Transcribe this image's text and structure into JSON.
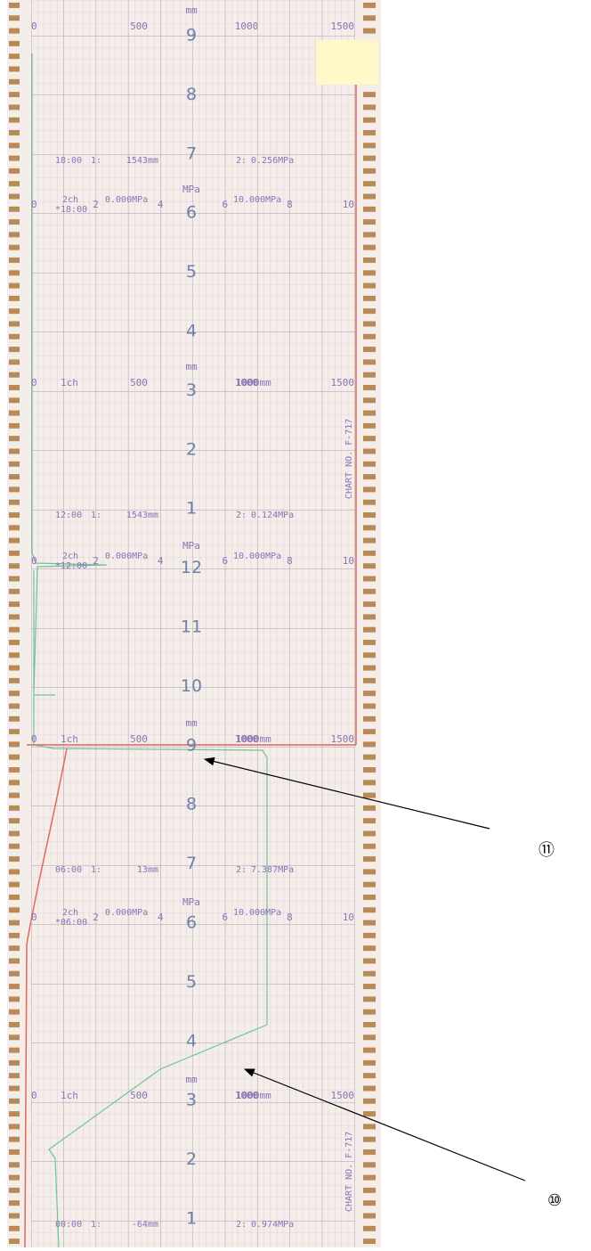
{
  "hours": [
    "9",
    "8",
    "7",
    "6",
    "5",
    "4",
    "3",
    "2",
    "1",
    "12",
    "11",
    "10",
    "9",
    "8",
    "7",
    "6",
    "5",
    "4",
    "3",
    "2",
    "1"
  ],
  "mm_scale": {
    "unit": "mm",
    "ticks": [
      "0",
      "500",
      "1000",
      "1500"
    ],
    "ch_label": "1ch",
    "end_label": "1000mm"
  },
  "mpa_scale": {
    "unit": "MPa",
    "ticks": [
      "0",
      "2",
      "4",
      "6",
      "8",
      "10"
    ]
  },
  "records": [
    {
      "time": "18:00",
      "ch1_label": "1:",
      "ch1": "1543mm",
      "ch2_label": "2:",
      "ch2": "0.256MPa",
      "ch2_name": "2ch",
      "ch2_time": "*18:00",
      "ch2_min": "0.000MPa",
      "ch2_max": "10.000MPa"
    },
    {
      "time": "12:00",
      "ch1_label": "1:",
      "ch1": "1543mm",
      "ch2_label": "2:",
      "ch2": "0.124MPa",
      "ch2_name": "2ch",
      "ch2_time": "*12:00",
      "ch2_min": "0.000MPa",
      "ch2_max": "10.000MPa"
    },
    {
      "time": "06:00",
      "ch1_label": "1:",
      "ch1": "13mm",
      "ch2_label": "2:",
      "ch2": "7.387MPa",
      "ch2_name": "2ch",
      "ch2_time": "*06:00",
      "ch2_min": "0.000MPa",
      "ch2_max": "10.000MPa"
    },
    {
      "time": "00:00",
      "ch1_label": "1:",
      "ch1": "-64mm",
      "ch2_label": "2:",
      "ch2": "0.974MPa"
    }
  ],
  "chart_no": "CHART NO. F-717",
  "annotations": [
    "⑪",
    "⑩"
  ]
}
